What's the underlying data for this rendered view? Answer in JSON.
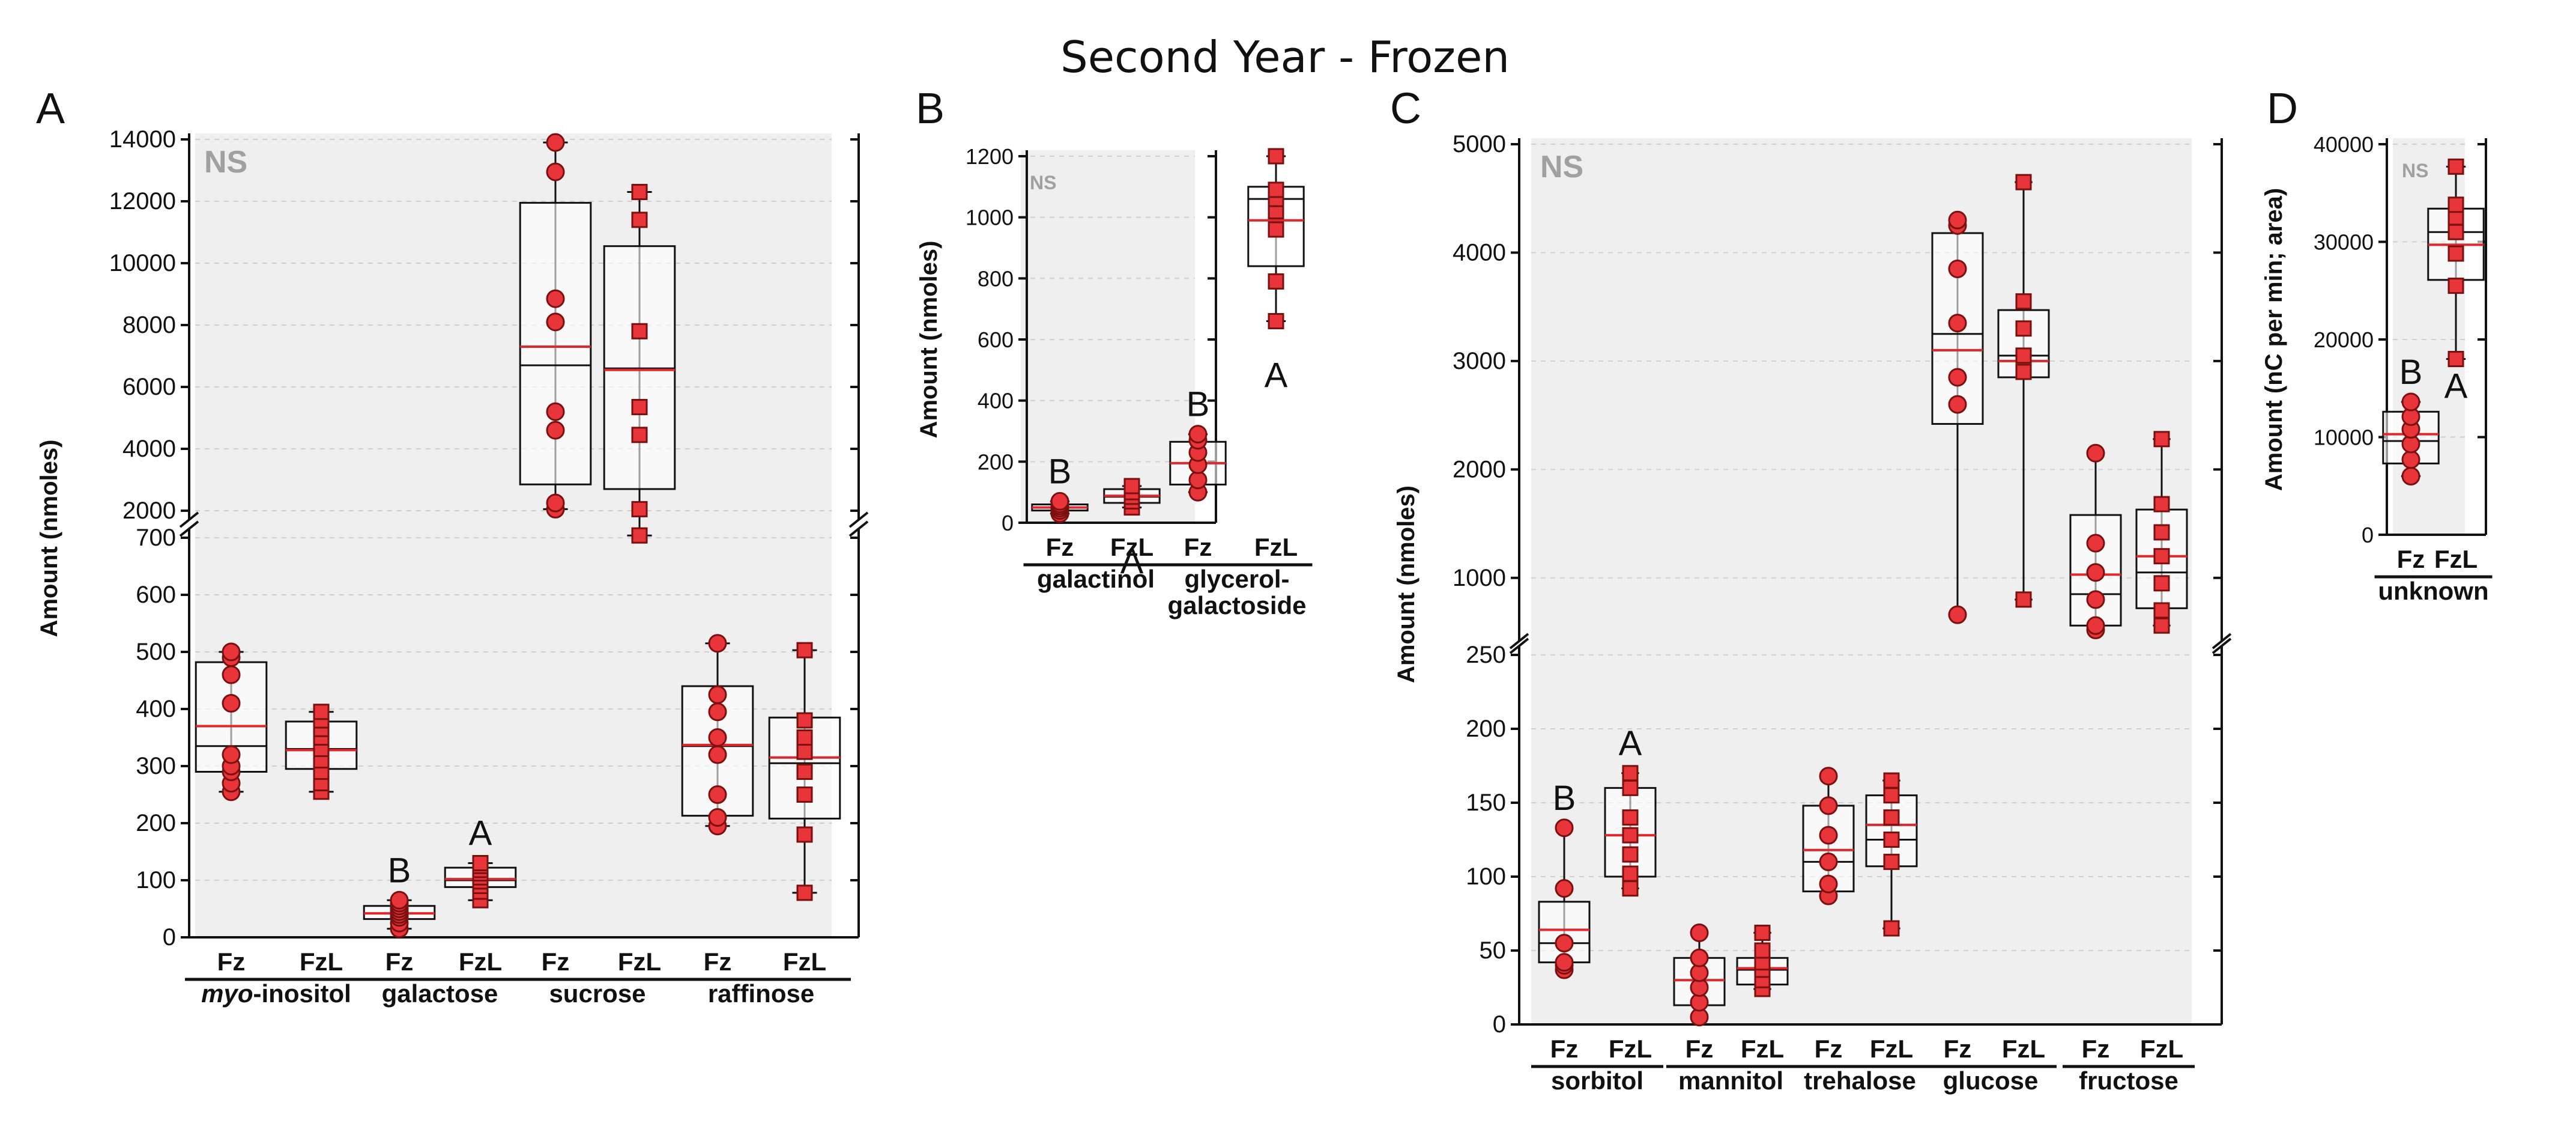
{
  "figure": {
    "title": "Second Year - Frozen",
    "colors": {
      "panel_bg": "#efefef",
      "marker_fill": "#e8353a",
      "marker_edge": "#7a1010",
      "mean_line": "#e0272c",
      "median_line": "#111111",
      "ns_text": "#a0a0a0",
      "grid": "#cfcfcf"
    }
  },
  "chart_data": [
    {
      "panel": "A",
      "type": "box",
      "ylabel": "Amount (nmoles)",
      "ns_label": "NS",
      "axis_break": true,
      "ylim_lower": [
        0,
        700
      ],
      "ylim_upper": [
        2000,
        14000
      ],
      "yticks_lower": [
        "0",
        "100",
        "200",
        "300",
        "400",
        "500",
        "600",
        "700"
      ],
      "yticks_upper": [
        "2000",
        "4000",
        "6000",
        "8000",
        "10000",
        "12000",
        "14000"
      ],
      "groups": [
        {
          "name": "myo-inositol",
          "name_italic": "myo",
          "name_rest": "-inositol",
          "categories": [
            "Fz",
            "FzL"
          ],
          "letters": [
            "",
            ""
          ]
        },
        {
          "name": "galactose",
          "categories": [
            "Fz",
            "FzL"
          ],
          "letters": [
            "B",
            "A"
          ]
        },
        {
          "name": "sucrose",
          "categories": [
            "Fz",
            "FzL"
          ],
          "letters": [
            "",
            ""
          ]
        },
        {
          "name": "raffinose",
          "categories": [
            "Fz",
            "FzL"
          ],
          "letters": [
            "",
            ""
          ]
        }
      ],
      "boxes": [
        {
          "group": "myo-inositol",
          "cat": "Fz",
          "marker": "circle",
          "q1": 290,
          "median": 335,
          "q3": 482,
          "min": 255,
          "max": 500,
          "mean": 370,
          "points": [
            255,
            270,
            290,
            300,
            320,
            410,
            460,
            490,
            500
          ]
        },
        {
          "group": "myo-inositol",
          "cat": "FzL",
          "marker": "square",
          "q1": 295,
          "median": 330,
          "q3": 378,
          "min": 255,
          "max": 395,
          "mean": 328,
          "points": [
            255,
            270,
            290,
            310,
            330,
            350,
            365,
            380,
            395
          ]
        },
        {
          "group": "galactose",
          "cat": "Fz",
          "marker": "circle",
          "q1": 32,
          "median": 42,
          "q3": 55,
          "min": 15,
          "max": 65,
          "mean": 42,
          "points": [
            15,
            25,
            35,
            40,
            45,
            50,
            55,
            60,
            65
          ]
        },
        {
          "group": "galactose",
          "cat": "FzL",
          "marker": "square",
          "q1": 88,
          "median": 100,
          "q3": 122,
          "min": 65,
          "max": 130,
          "mean": 102,
          "points": [
            65,
            80,
            90,
            98,
            105,
            112,
            118,
            125,
            130
          ]
        },
        {
          "group": "sucrose",
          "cat": "Fz",
          "marker": "circle",
          "q1": 2850,
          "median": 6700,
          "q3": 11950,
          "min": 2050,
          "max": 13900,
          "mean": 7300,
          "points": [
            2050,
            2250,
            4600,
            5200,
            8100,
            8850,
            12950,
            13900
          ]
        },
        {
          "group": "sucrose",
          "cat": "FzL",
          "marker": "square",
          "q1": 2700,
          "median": 6600,
          "q3": 10550,
          "min": 1200,
          "max": 12300,
          "mean": 6550,
          "points": [
            1200,
            2050,
            4450,
            5350,
            7800,
            11400,
            12300
          ]
        },
        {
          "group": "raffinose",
          "cat": "Fz",
          "marker": "circle",
          "q1": 213,
          "median": 335,
          "q3": 440,
          "min": 195,
          "max": 515,
          "mean": 337,
          "points": [
            195,
            210,
            250,
            320,
            350,
            395,
            425,
            515
          ]
        },
        {
          "group": "raffinose",
          "cat": "FzL",
          "marker": "square",
          "q1": 208,
          "median": 305,
          "q3": 385,
          "min": 78,
          "max": 503,
          "mean": 315,
          "points": [
            78,
            180,
            250,
            290,
            325,
            350,
            380,
            503
          ]
        }
      ]
    },
    {
      "panel": "B",
      "type": "box",
      "ylabel": "Amount (nmoles)",
      "ns_label": "NS",
      "axis_break": false,
      "ylim": [
        0,
        1200
      ],
      "yticks": [
        "0",
        "200",
        "400",
        "600",
        "800",
        "1000",
        "1200"
      ],
      "groups": [
        {
          "name": "galactinol",
          "categories": [
            "Fz",
            "FzL"
          ],
          "letters": [
            "B",
            "A"
          ]
        },
        {
          "name": "glycerol-galactoside",
          "name_line1": "glycerol-",
          "name_line2": "galactoside",
          "categories": [
            "Fz",
            "FzL"
          ],
          "letters": [
            "B",
            "A"
          ]
        }
      ],
      "boxes": [
        {
          "group": "galactinol",
          "cat": "Fz",
          "marker": "circle",
          "q1": 40,
          "median": 50,
          "q3": 60,
          "min": 30,
          "max": 70,
          "mean": 50,
          "points": [
            30,
            40,
            48,
            55,
            62,
            70
          ]
        },
        {
          "group": "galactinol",
          "cat": "FzL",
          "marker": "square",
          "q1": 65,
          "median": 85,
          "q3": 110,
          "min": 50,
          "max": 120,
          "mean": 88,
          "points": [
            50,
            70,
            85,
            100,
            120
          ]
        },
        {
          "group": "glycerol-galactoside",
          "cat": "Fz",
          "marker": "circle",
          "q1": 125,
          "median": 195,
          "q3": 265,
          "min": 100,
          "max": 290,
          "mean": 195,
          "points": [
            100,
            140,
            190,
            230,
            270,
            290
          ]
        },
        {
          "group": "glycerol-galactoside",
          "cat": "FzL",
          "marker": "square",
          "q1": 840,
          "median": 1060,
          "q3": 1100,
          "min": 660,
          "max": 1200,
          "mean": 990,
          "points": [
            660,
            790,
            960,
            1020,
            1060,
            1090,
            1200
          ]
        }
      ]
    },
    {
      "panel": "C",
      "type": "box",
      "ylabel": "Amount (nmoles)",
      "ns_label": "NS",
      "axis_break": true,
      "ylim_lower": [
        0,
        250
      ],
      "ylim_upper": [
        500,
        5000
      ],
      "yticks_lower": [
        "0",
        "50",
        "100",
        "150",
        "200",
        "250"
      ],
      "yticks_upper": [
        "1000",
        "2000",
        "3000",
        "4000",
        "5000"
      ],
      "groups": [
        {
          "name": "sorbitol",
          "categories": [
            "Fz",
            "FzL"
          ],
          "letters": [
            "B",
            "A"
          ]
        },
        {
          "name": "mannitol",
          "categories": [
            "Fz",
            "FzL"
          ],
          "letters": [
            "",
            ""
          ]
        },
        {
          "name": "trehalose",
          "categories": [
            "Fz",
            "FzL"
          ],
          "letters": [
            "",
            ""
          ]
        },
        {
          "name": "glucose",
          "categories": [
            "Fz",
            "FzL"
          ],
          "letters": [
            "",
            ""
          ]
        },
        {
          "name": "fructose",
          "categories": [
            "Fz",
            "FzL"
          ],
          "letters": [
            "",
            ""
          ]
        }
      ],
      "boxes": [
        {
          "group": "sorbitol",
          "cat": "Fz",
          "marker": "circle",
          "q1": 42,
          "median": 55,
          "q3": 83,
          "min": 37,
          "max": 133,
          "mean": 64,
          "points": [
            37,
            40,
            42,
            55,
            92,
            133
          ]
        },
        {
          "group": "sorbitol",
          "cat": "FzL",
          "marker": "square",
          "q1": 100,
          "median": 128,
          "q3": 160,
          "min": 92,
          "max": 170,
          "mean": 128,
          "points": [
            92,
            102,
            115,
            128,
            140,
            160,
            170
          ]
        },
        {
          "group": "mannitol",
          "cat": "Fz",
          "marker": "circle",
          "q1": 13,
          "median": 30,
          "q3": 45,
          "min": 5,
          "max": 62,
          "mean": 30,
          "points": [
            5,
            15,
            25,
            35,
            45,
            62
          ]
        },
        {
          "group": "mannitol",
          "cat": "FzL",
          "marker": "square",
          "q1": 27,
          "median": 37,
          "q3": 45,
          "min": 24,
          "max": 62,
          "mean": 38,
          "points": [
            24,
            30,
            37,
            42,
            50,
            62
          ]
        },
        {
          "group": "trehalose",
          "cat": "Fz",
          "marker": "circle",
          "q1": 90,
          "median": 110,
          "q3": 148,
          "min": 87,
          "max": 168,
          "mean": 118,
          "points": [
            87,
            95,
            110,
            128,
            148,
            168
          ]
        },
        {
          "group": "trehalose",
          "cat": "FzL",
          "marker": "square",
          "q1": 107,
          "median": 125,
          "q3": 155,
          "min": 65,
          "max": 165,
          "mean": 135,
          "points": [
            65,
            110,
            125,
            140,
            155,
            165
          ]
        },
        {
          "group": "glucose",
          "cat": "Fz",
          "marker": "circle",
          "q1": 2420,
          "median": 3250,
          "q3": 4180,
          "min": 660,
          "max": 4300,
          "mean": 3100,
          "points": [
            660,
            2600,
            2850,
            3350,
            3850,
            4250,
            4300
          ]
        },
        {
          "group": "glucose",
          "cat": "FzL",
          "marker": "square",
          "q1": 2850,
          "median": 3050,
          "q3": 3470,
          "min": 800,
          "max": 4650,
          "mean": 3000,
          "points": [
            800,
            2900,
            3050,
            3300,
            3550,
            4650
          ]
        },
        {
          "group": "fructose",
          "cat": "Fz",
          "marker": "circle",
          "q1": 560,
          "median": 850,
          "q3": 1580,
          "min": 520,
          "max": 2150,
          "mean": 1030,
          "points": [
            520,
            560,
            800,
            1050,
            1320,
            2150
          ]
        },
        {
          "group": "fructose",
          "cat": "FzL",
          "marker": "square",
          "q1": 720,
          "median": 1050,
          "q3": 1630,
          "min": 560,
          "max": 2280,
          "mean": 1200,
          "points": [
            560,
            700,
            950,
            1200,
            1420,
            1680,
            2280
          ]
        }
      ]
    },
    {
      "panel": "D",
      "type": "box",
      "ylabel": "Amount (nC per min; area)",
      "ns_label": "NS",
      "axis_break": false,
      "ylim": [
        0,
        40000
      ],
      "yticks": [
        "0",
        "10000",
        "20000",
        "30000",
        "40000"
      ],
      "groups": [
        {
          "name": "unknown",
          "categories": [
            "Fz",
            "FzL"
          ],
          "letters": [
            "B",
            "A"
          ]
        }
      ],
      "boxes": [
        {
          "group": "unknown",
          "cat": "Fz",
          "marker": "circle",
          "q1": 7300,
          "median": 9600,
          "q3": 12600,
          "min": 6000,
          "max": 13600,
          "mean": 10300,
          "points": [
            6000,
            7700,
            9300,
            10800,
            12100,
            13600
          ]
        },
        {
          "group": "unknown",
          "cat": "FzL",
          "marker": "square",
          "q1": 26100,
          "median": 31000,
          "q3": 33400,
          "min": 18000,
          "max": 37700,
          "mean": 29700,
          "points": [
            18000,
            25500,
            28800,
            31000,
            32500,
            33800,
            37700
          ]
        }
      ]
    }
  ]
}
